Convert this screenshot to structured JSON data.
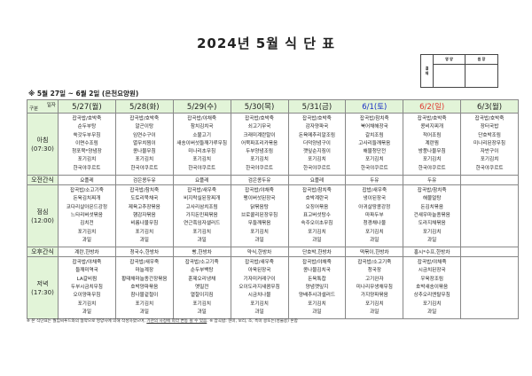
{
  "title": "2024년 5월 식 단 표",
  "approval": {
    "side": "결 재",
    "col1": "영 양",
    "col2": "원 장"
  },
  "subtitle": "※ 5월 27일 ~ 6월 2일 (은천요양원)",
  "corner": {
    "top": "일자",
    "bottom": "구분"
  },
  "days": [
    {
      "label": "5/27(월)",
      "color": "#222222"
    },
    {
      "label": "5/28(화)",
      "color": "#222222"
    },
    {
      "label": "5/29(수)",
      "color": "#222222"
    },
    {
      "label": "5/30(목)",
      "color": "#222222"
    },
    {
      "label": "5/31(금)",
      "color": "#222222"
    },
    {
      "label": "6/1(토)",
      "color": "#1a2fc4"
    },
    {
      "label": "6/2(일)",
      "color": "#e0342c"
    },
    {
      "label": "6/3(월)",
      "color": "#222222"
    }
  ],
  "meals": {
    "breakfast": {
      "label": "아침",
      "time": "(07:30)",
      "menus": [
        [
          "잡곡밥/호박죽",
          "순두부탕",
          "쑥갓두부무침",
          "이면수조림",
          "청포묵*양념장",
          "포기김치",
          "한국야쿠르트"
        ],
        [
          "잡곡밥/호박죽",
          "알곤이탕",
          "임연수구이",
          "멸무치찜이",
          "콩나물무침",
          "포기김치",
          "한국야쿠르트"
        ],
        [
          "잡곡밥/야채죽",
          "참치김치국",
          "소불고기",
          "새송이버섯들깨가루무침",
          "미나리초무침",
          "포기김치",
          "한국야쿠르트"
        ],
        [
          "잡곡밥/호박죽",
          "쇠고기무국",
          "크래미계란말이",
          "어묵파프리카볶음",
          "두부양념조림",
          "포기김치",
          "한국야쿠르트"
        ],
        [
          "잡곡밥/호박죽",
          "감자양파국",
          "돈육메추리알조림",
          "더덕양념구이",
          "깻잎순지짐이",
          "포기김치",
          "한국야쿠르트"
        ],
        [
          "잡곡밥/참치죽",
          "북어채해장국",
          "갈치조림",
          "고사리들깨볶음",
          "해물청단전",
          "포기김치",
          "한국야쿠르트"
        ],
        [
          "잡곡밥/호박죽",
          "콩비지찌개",
          "적어조림",
          "계란찜",
          "방풍나물무침",
          "포기김치",
          "한국야쿠르트"
        ],
        [
          "잡곡밥/호박죽",
          "장터국밥",
          "단호박조림",
          "미나리된장무침",
          "자반구이",
          "포기김치",
          "한국야쿠르트"
        ]
      ]
    },
    "am_snack": {
      "label": "오전간식",
      "items": [
        "요플레",
        "검은콩두유",
        "요플레",
        "검은콩두유",
        "요플레",
        "두유",
        "두유",
        ""
      ]
    },
    "lunch": {
      "label": "점심",
      "time": "(12:00)",
      "menus": [
        [
          "잡곡밥/소고기죽",
          "돈육김치찌개",
          "코다리살아몬드강정",
          "느타리버섯볶음",
          "김치전",
          "포기김치",
          "과일"
        ],
        [
          "잡곡밥/참치죽",
          "도토리묵채국",
          "제육고추장볶음",
          "햄감자볶음",
          "비름나물무침",
          "포기김치",
          "과일"
        ],
        [
          "잡곡밥/새우죽",
          "비지락실된장찌개",
          "고사리삼치조림",
          "가지돈민찌볶음",
          "연근흑임자샐러드",
          "포기김치",
          "과일"
        ],
        [
          "잡곡밥/야채죽",
          "팽이버섯된장국",
          "닭볶음탕",
          "브로콜리된장무침",
          "무들깨볶음",
          "포기김치",
          "과일"
        ],
        [
          "잡곡밥/참치죽",
          "호박계란국",
          "오징어볶음",
          "표고버섯탕수",
          "숙주오이초무침",
          "포기김치",
          "과일"
        ],
        [
          "잡밥/새우죽",
          "냉이된장국",
          "아귀살땅콩강정",
          "마파두부",
          "청경채나물",
          "포기김치",
          "과일"
        ],
        [
          "잡곡밥/참치죽",
          "해물얼탕",
          "돈김치볶음",
          "건새우마늘종볶음",
          "도라지채볶음",
          "포기김치",
          "과일"
        ],
        [
          "",
          "",
          "",
          "",
          "",
          "",
          ""
        ]
      ]
    },
    "pm_snack": {
      "label": "오후간식",
      "items": [
        "계란,한방차",
        "청국수,한방차",
        "빵,한방차",
        "약식,한방차",
        "단호박,한방차",
        "떡볶이,한방차",
        "홍시*수프,한방차",
        ""
      ]
    },
    "dinner": {
      "label": "저녁",
      "time": "(17:30)",
      "menus": [
        [
          "잡곡밥/야채죽",
          "들깨미역국",
          "LA갈비찜",
          "두부시금치무침",
          "오이양파무침",
          "포기김치",
          "과일"
        ],
        [
          "잡곡밥/새우죽",
          "마늘계장",
          "황태채마늘종간장볶음",
          "호박양파볶음",
          "참나물겉절이",
          "포기김치",
          "과일"
        ],
        [
          "잡곡밥/소고기죽",
          "순두부백탕",
          "훈제오리냉채",
          "옛밀전",
          "열잘이지짐",
          "포기김치",
          "과일"
        ],
        [
          "잡곡밥/새우죽",
          "아욱된장국",
          "기자미커레구이",
          "오이도라지새콤무침",
          "시금치나물",
          "포기김치",
          "과일"
        ],
        [
          "잡곡밥/야채죽",
          "콩나물김치국",
          "돈육톡찹",
          "양념깻잎지",
          "양배추사과샐러드",
          "포기김치",
          "과일"
        ],
        [
          "잡곡밥/소고기죽",
          "청국장",
          "고기완자",
          "미나리무생채무침",
          "가지양파볶음",
          "포기김치",
          "과일"
        ],
        [
          "잡곡밥/야채죽",
          "시금치된장국",
          "우육장조림",
          "호박새송이볶음",
          "상추오리엔탈무침",
          "포기김치",
          "과일"
        ],
        [
          "",
          "",
          "",
          "",
          "",
          "",
          ""
        ]
      ]
    }
  },
  "note": {
    "text1": "※ 본 식단표는 월임씨푸드와의 협약으로 영양사에 의해 작성하였으며, ",
    "underlined": "기관의 사정에 따라 변동 될 수 있음",
    "text2": ". ※ 잡곡밥: 현미, 보리, 조, 흑미 콩또는(성물콩) 혼합"
  }
}
